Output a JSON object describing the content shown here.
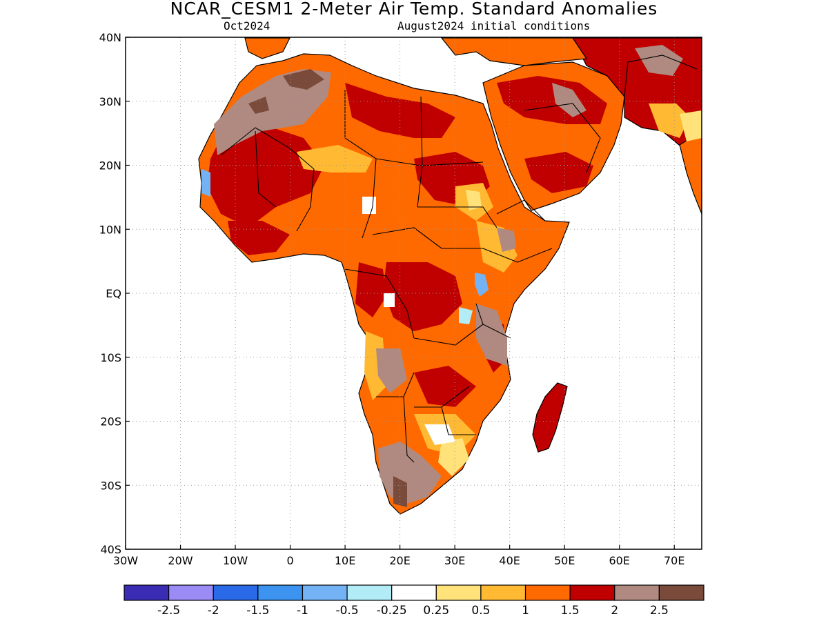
{
  "title": "NCAR_CESM1 2-Meter Air Temp. Standard Anomalies",
  "subtitle_left": "Oct2024",
  "subtitle_right": "August2024 initial conditions",
  "axes": {
    "lon_ticks": [
      "30W",
      "20W",
      "10W",
      "0",
      "10E",
      "20E",
      "30E",
      "40E",
      "50E",
      "60E",
      "70E"
    ],
    "lat_ticks": [
      "40N",
      "30N",
      "20N",
      "10N",
      "EQ",
      "10S",
      "20S",
      "30S",
      "40S"
    ],
    "lon_range": [
      -30,
      75
    ],
    "lat_range": [
      -40,
      40
    ],
    "grid": "dotted"
  },
  "colorbar": {
    "colors": [
      "#3a2db3",
      "#9b8cf5",
      "#2a6ae8",
      "#3c93f0",
      "#73b3f5",
      "#b2ecf7",
      "#ffffff",
      "#ffe27a",
      "#ffb932",
      "#ff6a00",
      "#c00000",
      "#b08a80",
      "#7a4a3a"
    ],
    "labels": [
      "-2.5",
      "-2",
      "-1.5",
      "-1",
      "-0.5",
      "-0.25",
      "0.25",
      "0.5",
      "1",
      "1.5",
      "2",
      "2.5"
    ]
  }
}
